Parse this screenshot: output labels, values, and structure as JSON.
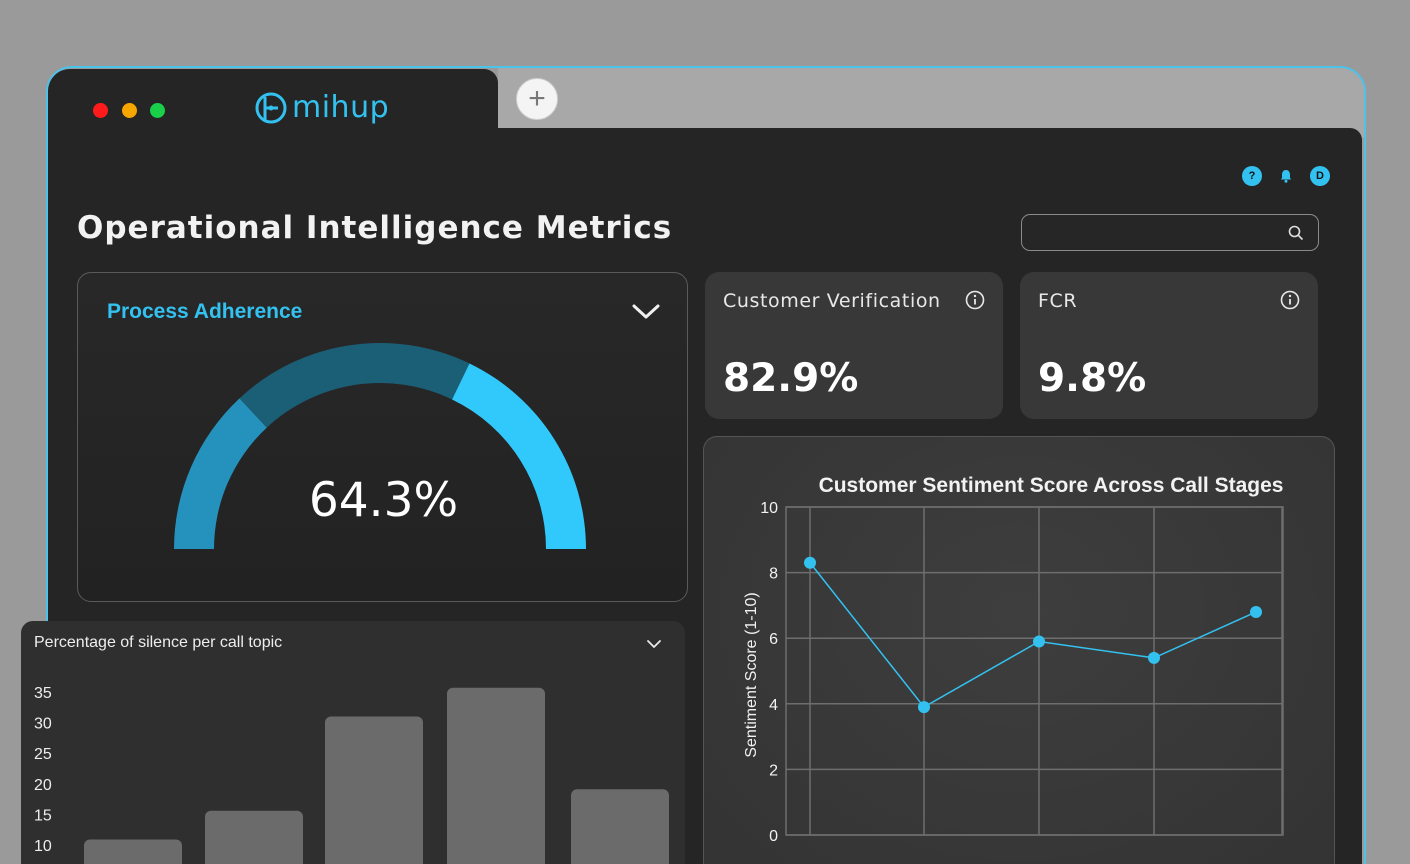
{
  "browser": {
    "logo_text": "mihup",
    "new_tab_label": "+",
    "traffic_colors": [
      "#ff1b1b",
      "#f7a600",
      "#18d04a"
    ]
  },
  "header": {
    "icons": [
      {
        "name": "help-icon",
        "glyph": "?"
      },
      {
        "name": "bell-icon",
        "glyph": ""
      },
      {
        "name": "user-avatar",
        "glyph": "D"
      }
    ]
  },
  "page": {
    "title": "Operational Intelligence Metrics",
    "search": {
      "placeholder": "",
      "value": ""
    }
  },
  "process_adherence": {
    "title": "Process Adherence",
    "value_label": "64.3%",
    "value": 64.3,
    "colors": {
      "left": "#2592bd",
      "middle": "#1b5f77",
      "right": "#31c9fb"
    }
  },
  "kpis": [
    {
      "label": "Customer Verification",
      "value": "82.9%"
    },
    {
      "label": "FCR",
      "value": "9.8%"
    }
  ],
  "chart_data": [
    {
      "type": "line",
      "title": "Customer Sentiment Score Across Call Stages",
      "xlabel": "",
      "ylabel": "Sentiment Score (1-10)",
      "ylim": [
        0,
        10
      ],
      "yticks": [
        0,
        2,
        4,
        6,
        8,
        10
      ],
      "x": [
        1,
        2,
        3,
        4,
        5
      ],
      "values": [
        8.3,
        3.9,
        5.9,
        5.4,
        6.8
      ],
      "color": "#33c2f0",
      "grid": true
    },
    {
      "type": "bar",
      "title": "Percentage of silence per call topic",
      "yticks": [
        10,
        15,
        20,
        25,
        30,
        35
      ],
      "ylim": [
        10,
        35
      ],
      "values": [
        10.9,
        15.6,
        31.0,
        35.7,
        19.1
      ],
      "color": "#6b6b6b",
      "grid": false
    }
  ]
}
